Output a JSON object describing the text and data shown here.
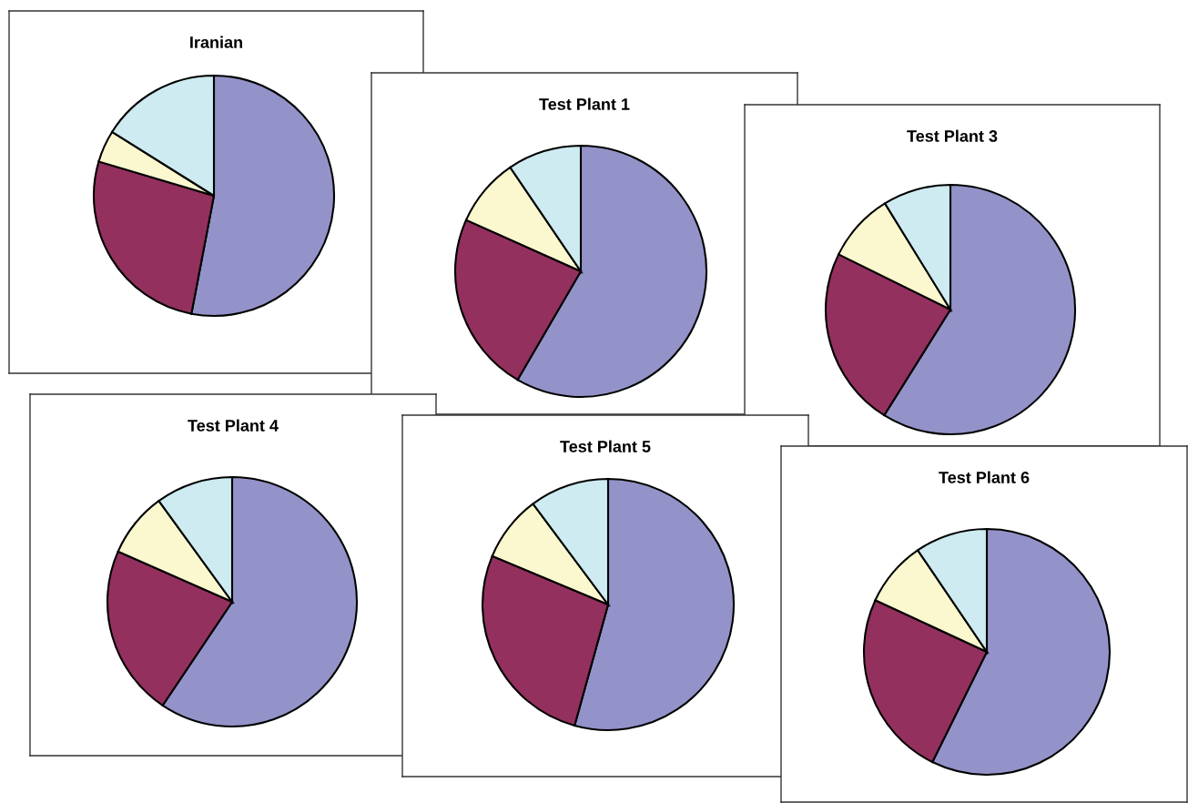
{
  "chart_data": [
    {
      "type": "pie",
      "title": "Iranian",
      "categories": [
        null,
        null,
        null,
        null
      ],
      "values": [
        53.0,
        26.6,
        4.3,
        16.1
      ],
      "colors": [
        "#9393c9",
        "#93305e",
        "#fbf8cf",
        "#cdebf0"
      ]
    },
    {
      "type": "pie",
      "title": "Test Plant 1",
      "categories": [
        null,
        null,
        null,
        null
      ],
      "values": [
        58.4,
        23.3,
        8.8,
        9.5
      ],
      "colors": [
        "#9393c9",
        "#93305e",
        "#fbf8cf",
        "#cdebf0"
      ]
    },
    {
      "type": "pie",
      "title": "Test Plant 3",
      "categories": [
        null,
        null,
        null,
        null
      ],
      "values": [
        58.9,
        23.4,
        8.9,
        8.8
      ],
      "colors": [
        "#9393c9",
        "#93305e",
        "#fbf8cf",
        "#cdebf0"
      ]
    },
    {
      "type": "pie",
      "title": "Test Plant 4",
      "categories": [
        null,
        null,
        null,
        null
      ],
      "values": [
        59.4,
        22.2,
        8.4,
        10.0
      ],
      "colors": [
        "#9393c9",
        "#93305e",
        "#fbf8cf",
        "#cdebf0"
      ]
    },
    {
      "type": "pie",
      "title": "Test Plant 5",
      "categories": [
        null,
        null,
        null,
        null
      ],
      "values": [
        54.3,
        27.0,
        8.5,
        10.2
      ],
      "colors": [
        "#9393c9",
        "#93305e",
        "#fbf8cf",
        "#cdebf0"
      ]
    },
    {
      "type": "pie",
      "title": "Test Plant 6",
      "categories": [
        null,
        null,
        null,
        null
      ],
      "values": [
        57.3,
        24.6,
        8.6,
        9.5
      ],
      "colors": [
        "#9393c9",
        "#93305e",
        "#fbf8cf",
        "#cdebf0"
      ]
    }
  ]
}
